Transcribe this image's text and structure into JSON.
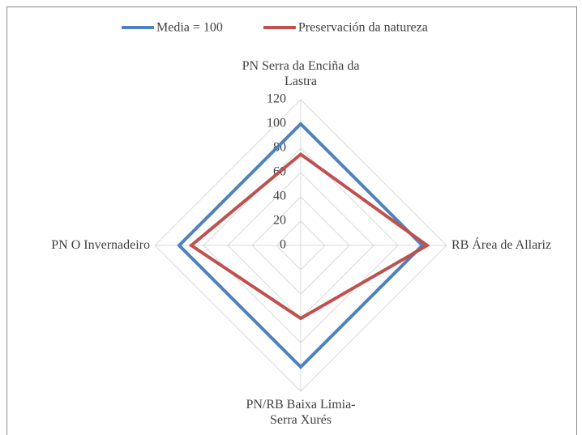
{
  "chart_data": {
    "type": "radar",
    "categories": [
      "PN Serra da Enciña da Lastra",
      "RB Área de Allariz",
      "PN/RB Baixa Limia-Serra Xurés",
      "PN O Invernadeiro"
    ],
    "series": [
      {
        "name": "Media = 100",
        "color": "#4f81bd",
        "values": [
          100,
          100,
          100,
          100
        ]
      },
      {
        "name": "Preservación da natureza",
        "color": "#c0504d",
        "values": [
          75,
          104,
          60,
          90
        ]
      }
    ],
    "ylim": [
      0,
      120
    ],
    "yticks": [
      0,
      20,
      40,
      60,
      80,
      100,
      120
    ],
    "grid": true,
    "legend": "top"
  }
}
